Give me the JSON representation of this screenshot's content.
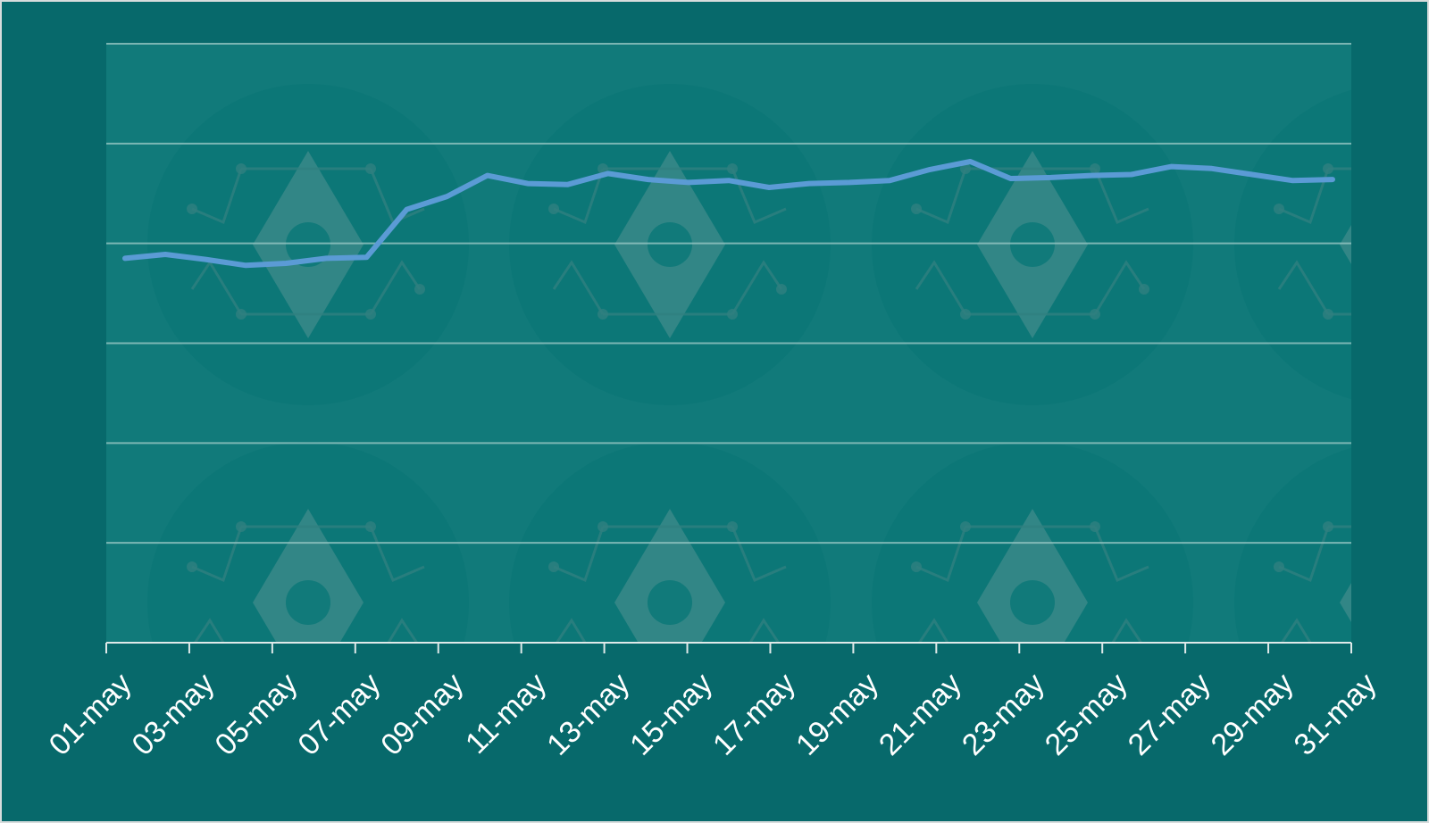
{
  "chart_data": {
    "type": "line",
    "title": "",
    "xlabel": "",
    "ylabel": "",
    "x": [
      "01-may",
      "02-may",
      "03-may",
      "04-may",
      "05-may",
      "06-may",
      "07-may",
      "08-may",
      "09-may",
      "10-may",
      "11-may",
      "12-may",
      "13-may",
      "14-may",
      "15-may",
      "16-may",
      "17-may",
      "18-may",
      "19-may",
      "20-may",
      "21-may",
      "22-may",
      "23-may",
      "24-may",
      "25-may",
      "26-may",
      "27-may",
      "28-may",
      "29-may",
      "30-may",
      "31-may"
    ],
    "tick_labels": [
      "01-may",
      "03-may",
      "05-may",
      "07-may",
      "09-may",
      "11-may",
      "13-may",
      "15-may",
      "17-may",
      "19-may",
      "21-may",
      "23-may",
      "25-may",
      "27-may",
      "29-may",
      "31-may"
    ],
    "series": [
      {
        "name": "",
        "values": [
          3.85,
          3.89,
          3.84,
          3.78,
          3.8,
          3.85,
          3.86,
          4.34,
          4.47,
          4.68,
          4.6,
          4.59,
          4.7,
          4.64,
          4.61,
          4.63,
          4.56,
          4.6,
          4.61,
          4.63,
          4.74,
          4.82,
          4.65,
          4.66,
          4.68,
          4.69,
          4.77,
          4.75,
          4.69,
          4.63,
          4.64
        ]
      }
    ],
    "ylim": [
      0,
      6
    ],
    "y_gridlines": [
      0,
      1,
      2,
      3,
      4,
      5,
      6
    ],
    "y_tick_labels_shown": false,
    "grid": true,
    "legend": "none",
    "colors": {
      "background": "#07696b",
      "plot_area": "#117a7a",
      "line": "#5b9bd5",
      "grid": "#8fc2bf",
      "axis": "#dfe9e9",
      "text": "#ffffff"
    }
  }
}
